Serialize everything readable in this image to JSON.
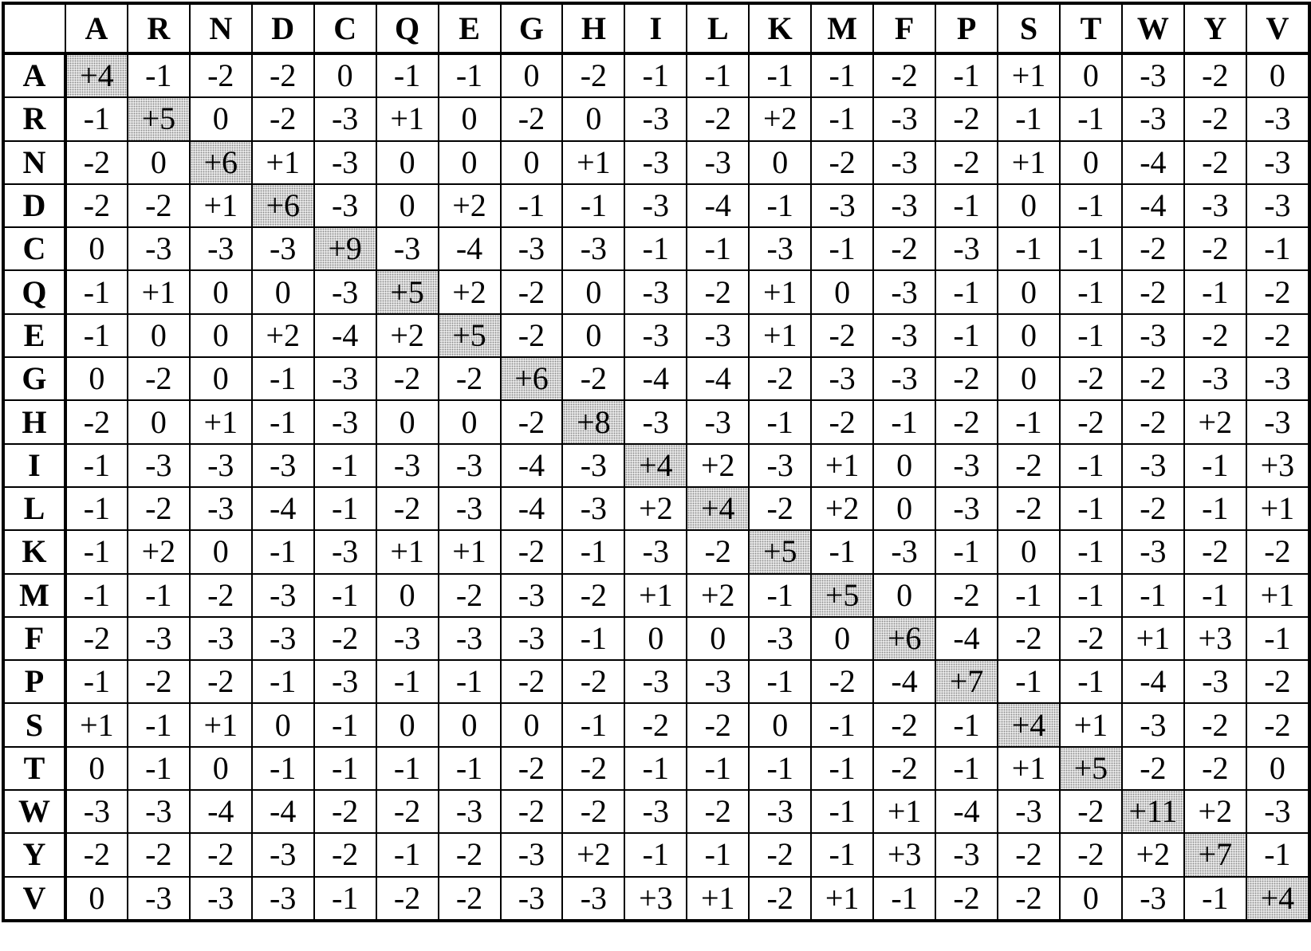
{
  "columns": [
    "A",
    "R",
    "N",
    "D",
    "C",
    "Q",
    "E",
    "G",
    "H",
    "I",
    "L",
    "K",
    "M",
    "F",
    "P",
    "S",
    "T",
    "W",
    "Y",
    "V"
  ],
  "rows": [
    {
      "label": "A",
      "values": [
        "+4",
        "-1",
        "-2",
        "-2",
        "0",
        "-1",
        "-1",
        "0",
        "-2",
        "-1",
        "-1",
        "-1",
        "-1",
        "-2",
        "-1",
        "+1",
        "0",
        "-3",
        "-2",
        "0"
      ]
    },
    {
      "label": "R",
      "values": [
        "-1",
        "+5",
        "0",
        "-2",
        "-3",
        "+1",
        "0",
        "-2",
        "0",
        "-3",
        "-2",
        "+2",
        "-1",
        "-3",
        "-2",
        "-1",
        "-1",
        "-3",
        "-2",
        "-3"
      ]
    },
    {
      "label": "N",
      "values": [
        "-2",
        "0",
        "+6",
        "+1",
        "-3",
        "0",
        "0",
        "0",
        "+1",
        "-3",
        "-3",
        "0",
        "-2",
        "-3",
        "-2",
        "+1",
        "0",
        "-4",
        "-2",
        "-3"
      ]
    },
    {
      "label": "D",
      "values": [
        "-2",
        "-2",
        "+1",
        "+6",
        "-3",
        "0",
        "+2",
        "-1",
        "-1",
        "-3",
        "-4",
        "-1",
        "-3",
        "-3",
        "-1",
        "0",
        "-1",
        "-4",
        "-3",
        "-3"
      ]
    },
    {
      "label": "C",
      "values": [
        "0",
        "-3",
        "-3",
        "-3",
        "+9",
        "-3",
        "-4",
        "-3",
        "-3",
        "-1",
        "-1",
        "-3",
        "-1",
        "-2",
        "-3",
        "-1",
        "-1",
        "-2",
        "-2",
        "-1"
      ]
    },
    {
      "label": "Q",
      "values": [
        "-1",
        "+1",
        "0",
        "0",
        "-3",
        "+5",
        "+2",
        "-2",
        "0",
        "-3",
        "-2",
        "+1",
        "0",
        "-3",
        "-1",
        "0",
        "-1",
        "-2",
        "-1",
        "-2"
      ]
    },
    {
      "label": "E",
      "values": [
        "-1",
        "0",
        "0",
        "+2",
        "-4",
        "+2",
        "+5",
        "-2",
        "0",
        "-3",
        "-3",
        "+1",
        "-2",
        "-3",
        "-1",
        "0",
        "-1",
        "-3",
        "-2",
        "-2"
      ]
    },
    {
      "label": "G",
      "values": [
        "0",
        "-2",
        "0",
        "-1",
        "-3",
        "-2",
        "-2",
        "+6",
        "-2",
        "-4",
        "-4",
        "-2",
        "-3",
        "-3",
        "-2",
        "0",
        "-2",
        "-2",
        "-3",
        "-3"
      ]
    },
    {
      "label": "H",
      "values": [
        "-2",
        "0",
        "+1",
        "-1",
        "-3",
        "0",
        "0",
        "-2",
        "+8",
        "-3",
        "-3",
        "-1",
        "-2",
        "-1",
        "-2",
        "-1",
        "-2",
        "-2",
        "+2",
        "-3"
      ]
    },
    {
      "label": "I",
      "values": [
        "-1",
        "-3",
        "-3",
        "-3",
        "-1",
        "-3",
        "-3",
        "-4",
        "-3",
        "+4",
        "+2",
        "-3",
        "+1",
        "0",
        "-3",
        "-2",
        "-1",
        "-3",
        "-1",
        "+3"
      ]
    },
    {
      "label": "L",
      "values": [
        "-1",
        "-2",
        "-3",
        "-4",
        "-1",
        "-2",
        "-3",
        "-4",
        "-3",
        "+2",
        "+4",
        "-2",
        "+2",
        "0",
        "-3",
        "-2",
        "-1",
        "-2",
        "-1",
        "+1"
      ]
    },
    {
      "label": "K",
      "values": [
        "-1",
        "+2",
        "0",
        "-1",
        "-3",
        "+1",
        "+1",
        "-2",
        "-1",
        "-3",
        "-2",
        "+5",
        "-1",
        "-3",
        "-1",
        "0",
        "-1",
        "-3",
        "-2",
        "-2"
      ]
    },
    {
      "label": "M",
      "values": [
        "-1",
        "-1",
        "-2",
        "-3",
        "-1",
        "0",
        "-2",
        "-3",
        "-2",
        "+1",
        "+2",
        "-1",
        "+5",
        "0",
        "-2",
        "-1",
        "-1",
        "-1",
        "-1",
        "+1"
      ]
    },
    {
      "label": "F",
      "values": [
        "-2",
        "-3",
        "-3",
        "-3",
        "-2",
        "-3",
        "-3",
        "-3",
        "-1",
        "0",
        "0",
        "-3",
        "0",
        "+6",
        "-4",
        "-2",
        "-2",
        "+1",
        "+3",
        "-1"
      ]
    },
    {
      "label": "P",
      "values": [
        "-1",
        "-2",
        "-2",
        "-1",
        "-3",
        "-1",
        "-1",
        "-2",
        "-2",
        "-3",
        "-3",
        "-1",
        "-2",
        "-4",
        "+7",
        "-1",
        "-1",
        "-4",
        "-3",
        "-2"
      ]
    },
    {
      "label": "S",
      "values": [
        "+1",
        "-1",
        "+1",
        "0",
        "-1",
        "0",
        "0",
        "0",
        "-1",
        "-2",
        "-2",
        "0",
        "-1",
        "-2",
        "-1",
        "+4",
        "+1",
        "-3",
        "-2",
        "-2"
      ]
    },
    {
      "label": "T",
      "values": [
        "0",
        "-1",
        "0",
        "-1",
        "-1",
        "-1",
        "-1",
        "-2",
        "-2",
        "-1",
        "-1",
        "-1",
        "-1",
        "-2",
        "-1",
        "+1",
        "+5",
        "-2",
        "-2",
        "0"
      ]
    },
    {
      "label": "W",
      "values": [
        "-3",
        "-3",
        "-4",
        "-4",
        "-2",
        "-2",
        "-3",
        "-2",
        "-2",
        "-3",
        "-2",
        "-3",
        "-1",
        "+1",
        "-4",
        "-3",
        "-2",
        "+11",
        "+2",
        "-3"
      ]
    },
    {
      "label": "Y",
      "values": [
        "-2",
        "-2",
        "-2",
        "-3",
        "-2",
        "-1",
        "-2",
        "-3",
        "+2",
        "-1",
        "-1",
        "-2",
        "-1",
        "+3",
        "-3",
        "-2",
        "-2",
        "+2",
        "+7",
        "-1"
      ]
    },
    {
      "label": "V",
      "values": [
        "0",
        "-3",
        "-3",
        "-3",
        "-1",
        "-2",
        "-2",
        "-3",
        "-3",
        "+3",
        "+1",
        "-2",
        "+1",
        "-1",
        "-2",
        "-2",
        "0",
        "-3",
        "-1",
        "+4"
      ]
    }
  ],
  "diagonal_shading": "dotted-gray"
}
